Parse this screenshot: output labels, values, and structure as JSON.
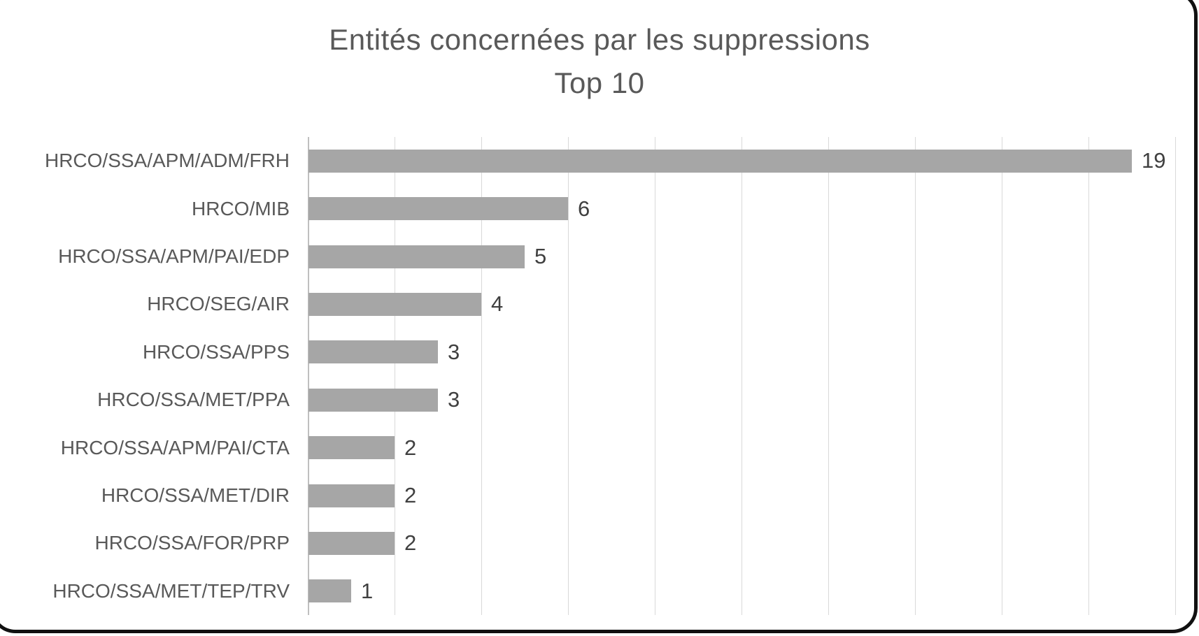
{
  "chart_data": {
    "type": "bar",
    "orientation": "horizontal",
    "title": "Entités concernées par les suppressions",
    "subtitle": "Top 10",
    "categories": [
      "HRCO/SSA/APM/ADM/FRH",
      "HRCO/MIB",
      "HRCO/SSA/APM/PAI/EDP",
      "HRCO/SEG/AIR",
      "HRCO/SSA/PPS",
      "HRCO/SSA/MET/PPA",
      "HRCO/SSA/APM/PAI/CTA",
      "HRCO/SSA/MET/DIR",
      "HRCO/SSA/FOR/PRP",
      "HRCO/SSA/MET/TEP/TRV"
    ],
    "values": [
      19,
      6,
      5,
      4,
      3,
      3,
      2,
      2,
      2,
      1
    ],
    "data_labels": [
      19,
      6,
      5,
      4,
      3,
      3,
      2,
      2,
      2,
      1
    ],
    "xlim": [
      0,
      20
    ],
    "gridline_interval": 2,
    "grid": true,
    "legend_position": "none",
    "xlabel": "",
    "ylabel": "",
    "colors": {
      "bar": "#a6a6a6",
      "gridline": "#d9d9d9",
      "axis_line": "#bfbfbf",
      "title_text": "#595959",
      "category_text": "#595959",
      "value_text": "#404040",
      "frame_border": "#111111",
      "background": "#ffffff"
    }
  }
}
